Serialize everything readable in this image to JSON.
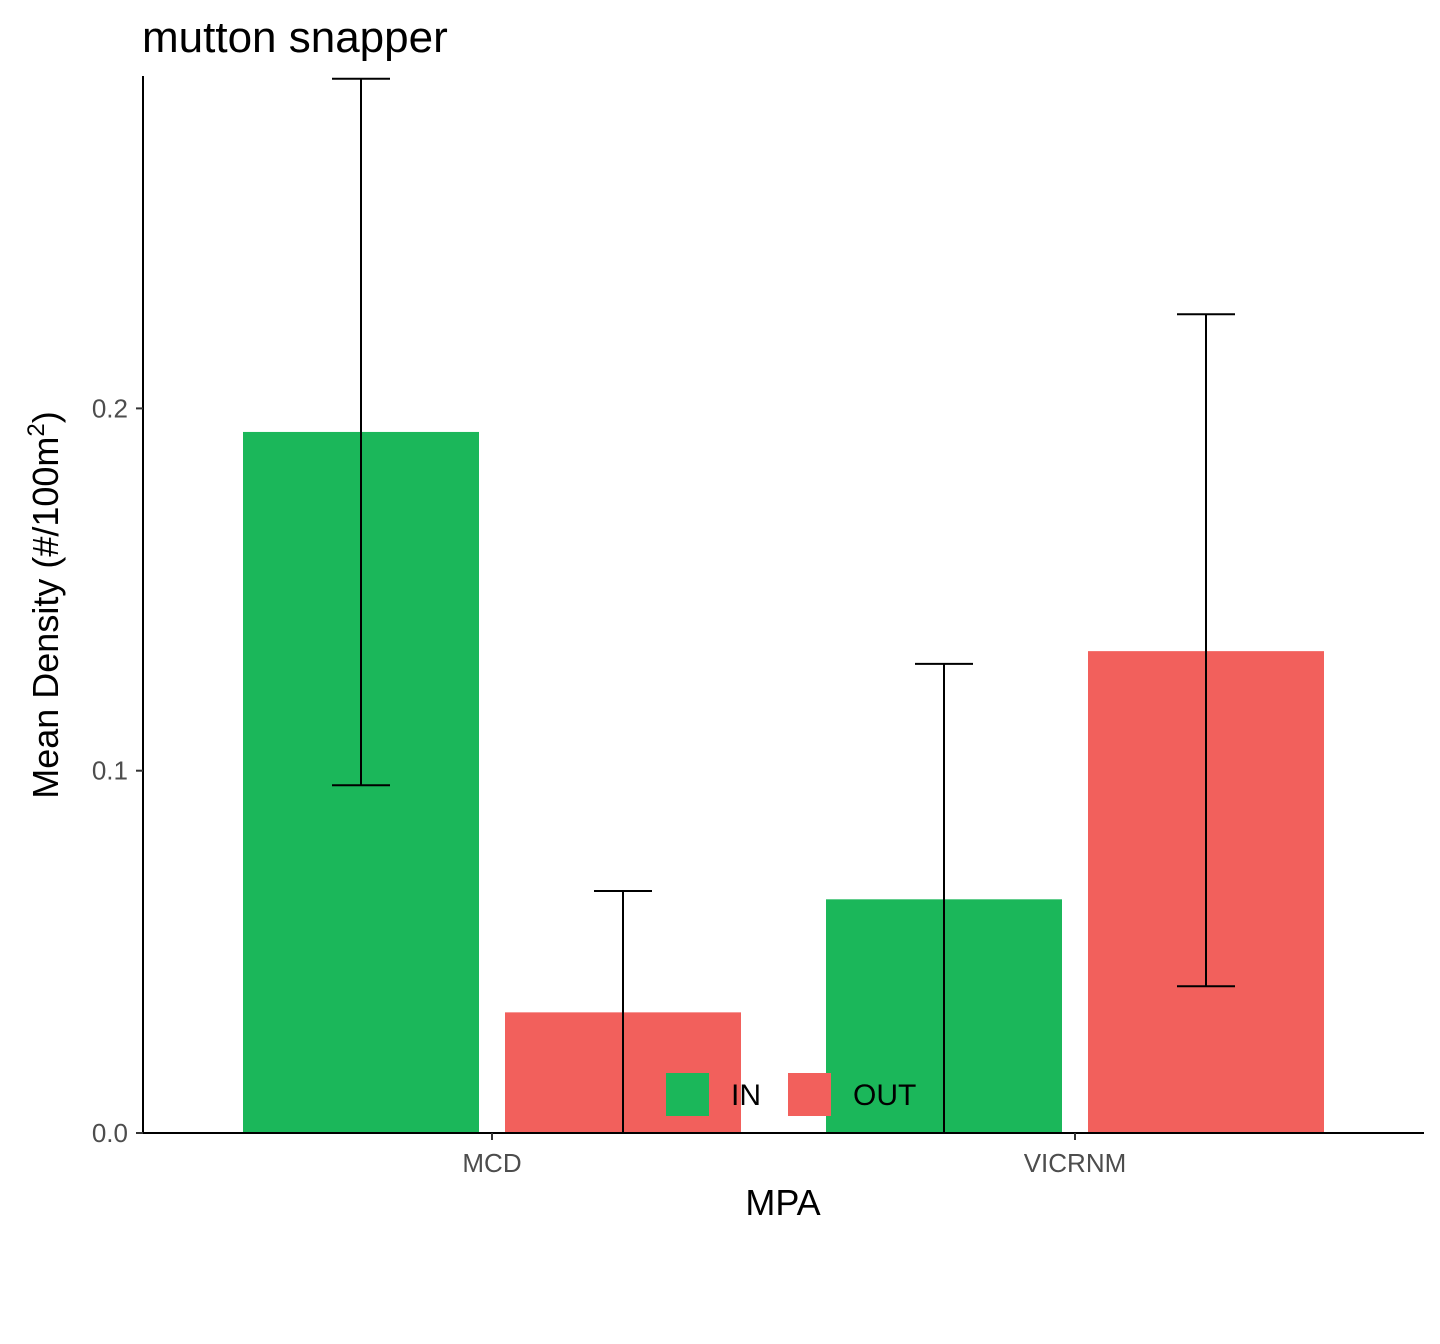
{
  "chart_data": {
    "type": "bar",
    "title": "mutton snapper",
    "xlabel": "MPA",
    "ylabel": "Mean Density (#/100m",
    "ylabel_sup": "2",
    "ylabel_tail": ")",
    "categories": [
      "MCD",
      "VICRNM"
    ],
    "series": [
      {
        "name": "IN",
        "color": "#1bb75a",
        "values": [
          0.1935,
          0.0645
        ],
        "error_low": [
          0.096,
          0.0
        ],
        "error_high": [
          0.291,
          0.1295
        ]
      },
      {
        "name": "OUT",
        "color": "#f2605c",
        "values": [
          0.0333,
          0.133
        ],
        "error_low": [
          0.0,
          0.0405
        ],
        "error_high": [
          0.0668,
          0.226
        ]
      }
    ],
    "yticks": [
      0.0,
      0.1,
      0.2
    ],
    "ytick_labels": [
      "0.0",
      "0.1",
      "0.2"
    ],
    "ylim": [
      0,
      0.291
    ],
    "grid": false,
    "legend_position": "bottom"
  }
}
